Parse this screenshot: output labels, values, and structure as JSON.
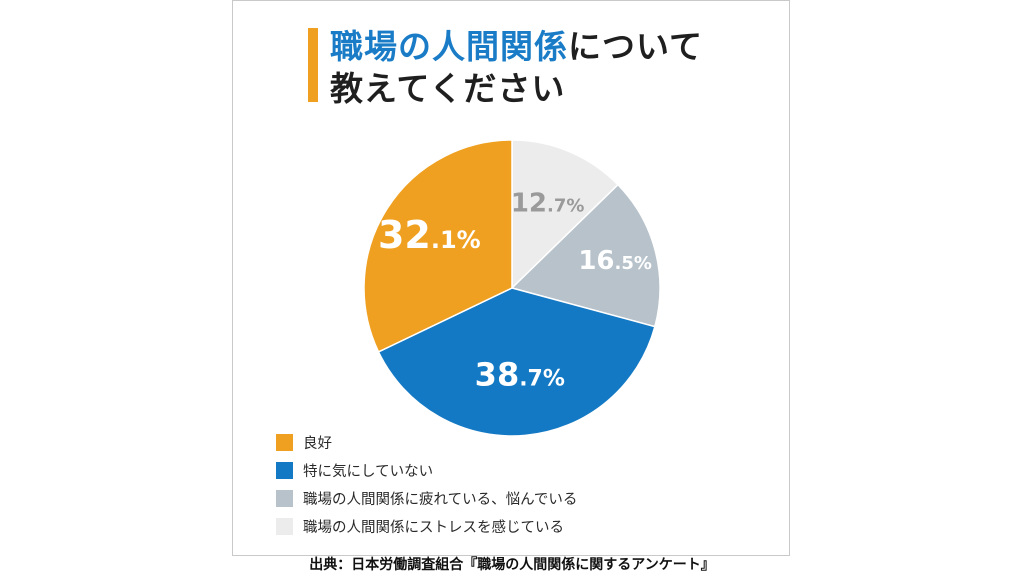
{
  "title": {
    "highlight": "職場の人間関係",
    "rest_line1": "について",
    "line2": "教えてください"
  },
  "chart_data": {
    "type": "pie",
    "categories": [
      "職場の人間関係にストレスを感じている",
      "職場の人間関係に疲れている、悩んでいる",
      "特に気にしていない",
      "良好"
    ],
    "values": [
      12.7,
      16.5,
      38.7,
      32.1
    ],
    "value_labels": [
      {
        "int": "12",
        "dec": ".7%"
      },
      {
        "int": "16",
        "dec": ".5%"
      },
      {
        "int": "38",
        "dec": ".7%"
      },
      {
        "int": "32",
        "dec": ".1%"
      }
    ],
    "colors": [
      "#ececec",
      "#b7c2cb",
      "#1479c4",
      "#f0a020"
    ],
    "label_colors": [
      "#9a9a9a",
      "#ffffff",
      "#ffffff",
      "#ffffff"
    ],
    "start": "12 o'clock",
    "direction": "clockwise",
    "legend": [
      {
        "label": "良好",
        "color": "#f0a020"
      },
      {
        "label": "特に気にしていない",
        "color": "#1479c4"
      },
      {
        "label": "職場の人間関係に疲れている、悩んでいる",
        "color": "#b7c2cb"
      },
      {
        "label": "職場の人間関係にストレスを感じている",
        "color": "#ececec"
      }
    ],
    "legend_placement": "bottom-left"
  },
  "source": "出典：日本労働調査組合『職場の人間関係に関するアンケート』"
}
